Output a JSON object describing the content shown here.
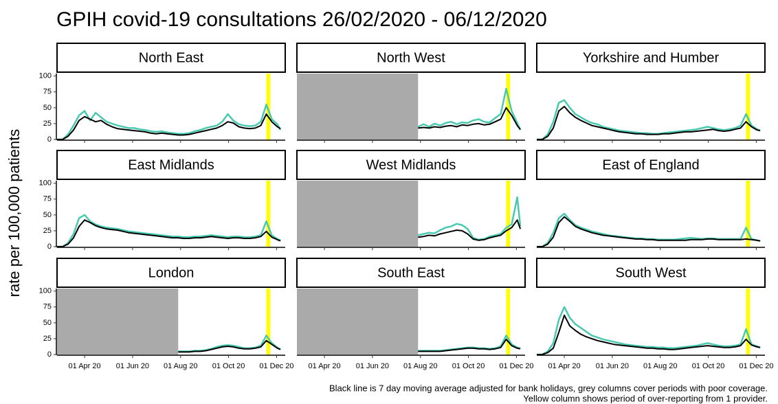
{
  "chart_data": {
    "type": "line",
    "title": "GPIH covid-19 consultations 26/02/2020 - 06/12/2020",
    "y_label": "rate per 100,000 patients",
    "notes": [
      "Black line is 7 day moving average adjusted for bank holidays, grey columns cover periods with poor coverage.",
      "Yellow column shows period of over-reporting from 1 provider."
    ],
    "xlim": [
      "2020-02-26",
      "2020-12-12"
    ],
    "xticks": [
      {
        "value": "2020-04-01",
        "label": "01 Apr 20"
      },
      {
        "value": "2020-06-01",
        "label": "01 Jun 20"
      },
      {
        "value": "2020-08-01",
        "label": "01 Aug 20"
      },
      {
        "value": "2020-10-01",
        "label": "01 Oct 20"
      },
      {
        "value": "2020-12-01",
        "label": "01 Dec 20"
      }
    ],
    "ylim": [
      0,
      104
    ],
    "yticks": [
      0,
      25,
      50,
      75,
      100
    ],
    "highlight_period": [
      "2020-11-18",
      "2020-11-23"
    ],
    "highlight_color": "#ffff00",
    "poor_coverage_color": "#aaaaaa",
    "x": [
      "2020-02-26",
      "2020-03-04",
      "2020-03-11",
      "2020-03-18",
      "2020-03-25",
      "2020-04-01",
      "2020-04-08",
      "2020-04-15",
      "2020-04-22",
      "2020-04-29",
      "2020-05-06",
      "2020-05-13",
      "2020-05-20",
      "2020-05-27",
      "2020-06-03",
      "2020-06-10",
      "2020-06-17",
      "2020-06-24",
      "2020-07-01",
      "2020-07-08",
      "2020-07-15",
      "2020-07-22",
      "2020-07-29",
      "2020-08-05",
      "2020-08-12",
      "2020-08-19",
      "2020-08-26",
      "2020-09-02",
      "2020-09-09",
      "2020-09-16",
      "2020-09-23",
      "2020-09-30",
      "2020-10-07",
      "2020-10-14",
      "2020-10-21",
      "2020-10-28",
      "2020-11-04",
      "2020-11-11",
      "2020-11-18",
      "2020-11-25",
      "2020-12-02",
      "2020-12-06"
    ],
    "panels": [
      {
        "name": "North East",
        "poor_coverage": null,
        "series": [
          {
            "color": "#48c9b0",
            "values": [
              0,
              0,
              8,
              22,
              38,
              45,
              30,
              42,
              35,
              28,
              25,
              22,
              20,
              18,
              18,
              16,
              15,
              13,
              12,
              13,
              11,
              10,
              9,
              9,
              10,
              13,
              15,
              18,
              20,
              22,
              28,
              40,
              30,
              24,
              22,
              21,
              22,
              28,
              55,
              32,
              24,
              15
            ]
          },
          {
            "color": "#000000",
            "values": [
              0,
              0,
              5,
              15,
              30,
              36,
              32,
              28,
              30,
              24,
              20,
              17,
              16,
              15,
              14,
              13,
              12,
              10,
              9,
              10,
              9,
              8,
              7,
              7,
              8,
              10,
              12,
              14,
              16,
              18,
              22,
              28,
              26,
              20,
              18,
              17,
              18,
              22,
              40,
              28,
              20,
              17
            ]
          }
        ]
      },
      {
        "name": "North West",
        "poor_coverage": [
          "2020-02-26",
          "2020-07-29"
        ],
        "series": [
          {
            "color": "#48c9b0",
            "values": [
              null,
              null,
              null,
              null,
              null,
              null,
              null,
              null,
              null,
              null,
              null,
              null,
              null,
              null,
              null,
              null,
              null,
              null,
              null,
              null,
              null,
              null,
              20,
              24,
              20,
              25,
              22,
              26,
              28,
              24,
              27,
              26,
              30,
              32,
              28,
              27,
              34,
              40,
              80,
              45,
              26,
              15
            ]
          },
          {
            "color": "#000000",
            "values": [
              null,
              null,
              null,
              null,
              null,
              null,
              null,
              null,
              null,
              null,
              null,
              null,
              null,
              null,
              null,
              null,
              null,
              null,
              null,
              null,
              null,
              null,
              18,
              19,
              18,
              20,
              19,
              21,
              22,
              20,
              23,
              22,
              24,
              25,
              23,
              24,
              28,
              32,
              50,
              38,
              22,
              16
            ]
          }
        ]
      },
      {
        "name": "Yorkshire and Humber",
        "poor_coverage": null,
        "series": [
          {
            "color": "#48c9b0",
            "values": [
              0,
              0,
              8,
              28,
              58,
              62,
              50,
              40,
              35,
              30,
              26,
              24,
              20,
              18,
              16,
              14,
              13,
              12,
              11,
              10,
              10,
              9,
              9,
              10,
              11,
              12,
              13,
              14,
              15,
              16,
              18,
              20,
              18,
              16,
              15,
              16,
              18,
              22,
              40,
              22,
              16,
              14
            ]
          },
          {
            "color": "#000000",
            "values": [
              0,
              0,
              5,
              18,
              45,
              52,
              42,
              35,
              30,
              26,
              22,
              20,
              18,
              16,
              14,
              12,
              11,
              10,
              9,
              9,
              8,
              8,
              8,
              9,
              9,
              10,
              11,
              12,
              12,
              13,
              14,
              15,
              16,
              14,
              13,
              14,
              16,
              18,
              28,
              20,
              15,
              14
            ]
          }
        ]
      },
      {
        "name": "East Midlands",
        "poor_coverage": null,
        "series": [
          {
            "color": "#48c9b0",
            "values": [
              0,
              0,
              6,
              20,
              45,
              50,
              40,
              35,
              32,
              30,
              29,
              28,
              26,
              24,
              23,
              22,
              21,
              20,
              19,
              18,
              17,
              16,
              16,
              15,
              15,
              16,
              16,
              17,
              18,
              17,
              16,
              15,
              16,
              16,
              15,
              15,
              16,
              18,
              40,
              18,
              12,
              10
            ]
          },
          {
            "color": "#000000",
            "values": [
              0,
              0,
              4,
              14,
              32,
              42,
              38,
              33,
              30,
              28,
              27,
              26,
              24,
              22,
              21,
              20,
              19,
              18,
              17,
              16,
              15,
              14,
              14,
              13,
              13,
              14,
              14,
              15,
              16,
              15,
              14,
              13,
              14,
              14,
              13,
              13,
              14,
              16,
              24,
              15,
              11,
              9
            ]
          }
        ]
      },
      {
        "name": "West Midlands",
        "poor_coverage": [
          "2020-02-26",
          "2020-07-29"
        ],
        "series": [
          {
            "color": "#48c9b0",
            "values": [
              null,
              null,
              null,
              null,
              null,
              null,
              null,
              null,
              null,
              null,
              null,
              null,
              null,
              null,
              null,
              null,
              null,
              null,
              null,
              null,
              null,
              null,
              18,
              20,
              22,
              21,
              26,
              30,
              32,
              36,
              34,
              28,
              14,
              11,
              12,
              16,
              18,
              20,
              30,
              35,
              78,
              32
            ]
          },
          {
            "color": "#000000",
            "values": [
              null,
              null,
              null,
              null,
              null,
              null,
              null,
              null,
              null,
              null,
              null,
              null,
              null,
              null,
              null,
              null,
              null,
              null,
              null,
              null,
              null,
              null,
              15,
              16,
              18,
              17,
              20,
              22,
              24,
              26,
              25,
              20,
              12,
              10,
              11,
              14,
              16,
              18,
              25,
              30,
              42,
              28
            ]
          }
        ]
      },
      {
        "name": "East of England",
        "poor_coverage": null,
        "series": [
          {
            "color": "#48c9b0",
            "values": [
              0,
              0,
              6,
              22,
              45,
              52,
              42,
              34,
              30,
              27,
              24,
              22,
              20,
              18,
              17,
              16,
              15,
              14,
              13,
              13,
              12,
              12,
              11,
              11,
              11,
              11,
              12,
              13,
              14,
              13,
              12,
              13,
              13,
              12,
              12,
              12,
              12,
              12,
              30,
              12,
              10,
              9
            ]
          },
          {
            "color": "#000000",
            "values": [
              0,
              0,
              4,
              15,
              38,
              47,
              40,
              32,
              28,
              25,
              22,
              20,
              18,
              17,
              16,
              15,
              14,
              13,
              12,
              12,
              11,
              11,
              10,
              10,
              10,
              10,
              10,
              10,
              11,
              11,
              11,
              12,
              12,
              11,
              11,
              11,
              11,
              11,
              12,
              11,
              10,
              9
            ]
          }
        ]
      },
      {
        "name": "London",
        "poor_coverage": [
          "2020-02-26",
          "2020-07-29"
        ],
        "series": [
          {
            "color": "#48c9b0",
            "values": [
              null,
              null,
              null,
              null,
              null,
              null,
              null,
              null,
              null,
              null,
              null,
              null,
              null,
              null,
              null,
              null,
              null,
              null,
              null,
              null,
              null,
              null,
              5,
              5,
              5,
              6,
              6,
              7,
              9,
              12,
              14,
              15,
              14,
              12,
              10,
              10,
              11,
              14,
              30,
              18,
              11,
              8
            ]
          },
          {
            "color": "#000000",
            "values": [
              null,
              null,
              null,
              null,
              null,
              null,
              null,
              null,
              null,
              null,
              null,
              null,
              null,
              null,
              null,
              null,
              null,
              null,
              null,
              null,
              null,
              null,
              4,
              4,
              4,
              5,
              5,
              6,
              8,
              10,
              12,
              13,
              12,
              10,
              9,
              9,
              10,
              12,
              22,
              16,
              10,
              8
            ]
          }
        ]
      },
      {
        "name": "South East",
        "poor_coverage": [
          "2020-02-26",
          "2020-07-29"
        ],
        "series": [
          {
            "color": "#48c9b0",
            "values": [
              null,
              null,
              null,
              null,
              null,
              null,
              null,
              null,
              null,
              null,
              null,
              null,
              null,
              null,
              null,
              null,
              null,
              null,
              null,
              null,
              null,
              null,
              6,
              6,
              6,
              6,
              6,
              7,
              8,
              9,
              10,
              11,
              11,
              10,
              10,
              9,
              10,
              13,
              30,
              16,
              11,
              10
            ]
          },
          {
            "color": "#000000",
            "values": [
              null,
              null,
              null,
              null,
              null,
              null,
              null,
              null,
              null,
              null,
              null,
              null,
              null,
              null,
              null,
              null,
              null,
              null,
              null,
              null,
              null,
              null,
              5,
              5,
              5,
              5,
              5,
              6,
              7,
              8,
              9,
              10,
              10,
              9,
              9,
              8,
              9,
              11,
              24,
              14,
              10,
              9
            ]
          }
        ]
      },
      {
        "name": "South West",
        "poor_coverage": null,
        "series": [
          {
            "color": "#48c9b0",
            "values": [
              0,
              0,
              5,
              18,
              55,
              75,
              58,
              48,
              42,
              36,
              30,
              27,
              24,
              22,
              20,
              18,
              16,
              15,
              14,
              13,
              12,
              12,
              11,
              11,
              10,
              10,
              11,
              12,
              13,
              14,
              16,
              18,
              16,
              14,
              13,
              13,
              14,
              16,
              40,
              16,
              13,
              11
            ]
          },
          {
            "color": "#000000",
            "values": [
              0,
              0,
              3,
              10,
              35,
              62,
              45,
              38,
              32,
              28,
              25,
              22,
              20,
              18,
              16,
              15,
              14,
              13,
              12,
              11,
              10,
              10,
              9,
              9,
              8,
              8,
              9,
              10,
              11,
              12,
              13,
              14,
              13,
              12,
              11,
              11,
              12,
              14,
              24,
              15,
              12,
              11
            ]
          }
        ]
      }
    ]
  }
}
